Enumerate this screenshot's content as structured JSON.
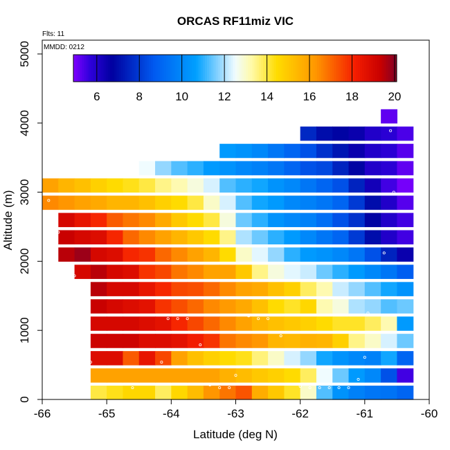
{
  "chart_data": {
    "type": "heatmap",
    "title": "ORCAS RF11miz VIC",
    "notes": [
      "Flts: 11",
      "MMDD: 0212"
    ],
    "xlabel": "Latitude (deg N)",
    "ylabel": "Altitude (m)",
    "xlim": [
      -66,
      -60
    ],
    "ylim": [
      0,
      5200
    ],
    "xticks": [
      -66,
      -65,
      -64,
      -63,
      -62,
      -61,
      -60
    ],
    "yticks": [
      0,
      1000,
      2000,
      3000,
      4000,
      5000
    ],
    "colorbar": {
      "min": 4.9,
      "max": 20.1,
      "ticks": [
        6,
        8,
        10,
        12,
        14,
        16,
        18,
        20
      ]
    },
    "x_bins": [
      -66.0,
      -65.75,
      -65.5,
      -65.25,
      -65.0,
      -64.75,
      -64.5,
      -64.25,
      -64.0,
      -63.75,
      -63.5,
      -63.25,
      -63.0,
      -62.75,
      -62.5,
      -62.25,
      -62.0,
      -61.75,
      -61.5,
      -61.25,
      -61.0,
      -60.75,
      -60.5
    ],
    "altitude_bins": [
      {
        "alt": 0,
        "start": -65.25,
        "values": [
          14.0,
          14.3,
          14.6,
          14.6,
          13.8,
          14.6,
          15.3,
          16.3,
          16.8,
          17.3,
          15.7,
          15.0,
          14.2,
          13.0,
          11.3,
          10.3,
          9.8,
          9.5,
          9.4,
          9.0
        ]
      },
      {
        "alt": 250,
        "start": -65.25,
        "values": [
          16.0,
          16.0,
          16.0,
          16.0,
          16.0,
          16.0,
          16.0,
          16.0,
          15.6,
          15.3,
          15.0,
          14.8,
          14.5,
          13.8,
          12.5,
          11.5,
          10.5,
          10.0,
          8.5,
          5.5
        ]
      },
      {
        "alt": 500,
        "start": -65.25,
        "values": [
          18.8,
          18.8,
          17.2,
          18.5,
          17.5,
          16.0,
          15.2,
          14.8,
          14.5,
          14.3,
          13.6,
          13.0,
          12.3,
          11.8,
          10.8,
          10.3,
          10.0,
          9.8,
          10.8,
          9.0
        ]
      },
      {
        "alt": 750,
        "start": -65.25,
        "values": [
          19.2,
          19.2,
          19.2,
          18.8,
          18.8,
          18.6,
          18.2,
          17.8,
          16.8,
          16.5,
          16.3,
          15.5,
          15.4,
          15.6,
          15.5,
          14.8,
          13.5,
          13.0,
          12.3,
          11.5
        ]
      },
      {
        "alt": 1000,
        "start": -65.25,
        "values": [
          19.0,
          19.0,
          19.0,
          18.8,
          18.6,
          18.0,
          17.5,
          17.0,
          16.5,
          16.0,
          15.5,
          15.2,
          15.0,
          14.8,
          14.5,
          14.2,
          14.2,
          13.8,
          13.2,
          10.5
        ]
      },
      {
        "alt": 1250,
        "start": -65.25,
        "values": [
          19.3,
          19.0,
          18.8,
          18.6,
          17.8,
          17.4,
          17.0,
          16.5,
          16.2,
          15.8,
          15.2,
          14.5,
          14.2,
          14.6,
          13.2,
          12.8,
          12.0,
          11.8,
          11.3,
          11.5
        ]
      },
      {
        "alt": 1500,
        "start": -65.25,
        "values": [
          19.5,
          19.0,
          19.0,
          18.5,
          18.0,
          17.5,
          17.4,
          17.0,
          16.5,
          16.0,
          15.8,
          15.2,
          14.8,
          13.8,
          13.2,
          12.2,
          11.8,
          11.3,
          10.8,
          10.3
        ]
      },
      {
        "alt": 1750,
        "start": -65.5,
        "values": [
          19.0,
          19.5,
          19.0,
          18.8,
          17.8,
          17.5,
          16.8,
          16.5,
          16.0,
          16.0,
          15.0,
          13.5,
          12.8,
          12.4,
          12.2,
          11.5,
          11.0,
          10.5,
          10.0,
          9.5,
          8.8
        ]
      },
      {
        "alt": 2000,
        "start": -65.75,
        "values": [
          19.5,
          19.8,
          19.0,
          18.8,
          18.0,
          17.8,
          17.0,
          16.5,
          16.0,
          15.5,
          14.5,
          13.0,
          12.4,
          11.8,
          11.0,
          10.5,
          10.3,
          10.0,
          9.5,
          8.5,
          7.5,
          6.5
        ]
      },
      {
        "alt": 2250,
        "start": -65.75,
        "values": [
          19.3,
          19.0,
          18.8,
          18.0,
          17.0,
          16.5,
          16.0,
          15.5,
          15.0,
          14.5,
          13.5,
          12.0,
          11.5,
          11.0,
          10.5,
          10.0,
          9.5,
          9.0,
          8.0,
          7.0,
          6.0,
          5.5
        ]
      },
      {
        "alt": 2500,
        "start": -65.75,
        "values": [
          19.0,
          18.5,
          18.0,
          17.2,
          16.8,
          16.5,
          15.8,
          15.0,
          14.5,
          14.0,
          12.8,
          11.5,
          11.0,
          10.3,
          10.0,
          9.8,
          9.3,
          8.5,
          7.8,
          6.8,
          6.0,
          5.5
        ]
      },
      {
        "alt": 2750,
        "start": -66.0,
        "values": [
          16.5,
          16.3,
          16.0,
          15.8,
          15.5,
          15.5,
          15.2,
          14.8,
          14.5,
          14.0,
          13.0,
          12.3,
          11.3,
          10.8,
          10.5,
          10.0,
          9.8,
          9.5,
          9.0,
          8.0,
          7.0,
          6.0,
          5.3
        ]
      },
      {
        "alt": 3000,
        "start": -66.0,
        "values": [
          16.0,
          15.5,
          15.2,
          14.8,
          14.5,
          14.3,
          14.0,
          13.5,
          13.2,
          12.8,
          12.3,
          11.3,
          11.0,
          10.8,
          10.3,
          10.0,
          9.5,
          9.0,
          8.5,
          7.5,
          6.3,
          5.5,
          5.0
        ]
      },
      {
        "alt": 3250,
        "start": -64.5,
        "values": [
          12.5,
          11.8,
          11.3,
          11.0,
          10.5,
          10.3,
          10.0,
          9.8,
          9.5,
          9.0,
          8.5,
          8.3,
          7.5,
          6.8,
          6.0,
          5.8,
          5.2
        ]
      },
      {
        "alt": 3500,
        "start": -63.25,
        "values": [
          10.5,
          10.3,
          10.0,
          9.5,
          9.0,
          8.5,
          7.8,
          7.2,
          6.5,
          6.0,
          5.8,
          5.3
        ]
      },
      {
        "alt": 3750,
        "start": -62.0,
        "values": [
          7.6,
          7.0,
          6.8,
          6.5,
          6.0,
          5.8,
          5.4
        ]
      },
      {
        "alt": 4000,
        "start": -60.75,
        "values": [
          5.2
        ]
      }
    ],
    "flight_points": [
      [
        -65.9,
        2880
      ],
      [
        -65.75,
        2420
      ],
      [
        -65.5,
        1790
      ],
      [
        -65.4,
        1170
      ],
      [
        -65.25,
        540
      ],
      [
        -64.6,
        170
      ],
      [
        -64.15,
        540
      ],
      [
        -64.05,
        1170
      ],
      [
        -63.9,
        1170
      ],
      [
        -63.75,
        1170
      ],
      [
        -63.55,
        790
      ],
      [
        -63.4,
        210
      ],
      [
        -63.25,
        170
      ],
      [
        -63.1,
        170
      ],
      [
        -63.0,
        350
      ],
      [
        -62.8,
        1210
      ],
      [
        -62.65,
        1170
      ],
      [
        -62.5,
        1170
      ],
      [
        -62.3,
        920
      ],
      [
        -62.0,
        190
      ],
      [
        -61.85,
        170
      ],
      [
        -61.7,
        170
      ],
      [
        -61.55,
        170
      ],
      [
        -61.4,
        170
      ],
      [
        -61.25,
        170
      ],
      [
        -61.1,
        290
      ],
      [
        -61.0,
        610
      ],
      [
        -60.95,
        1250
      ],
      [
        -60.7,
        2120
      ],
      [
        -60.55,
        3000
      ],
      [
        -60.6,
        3890
      ]
    ]
  }
}
